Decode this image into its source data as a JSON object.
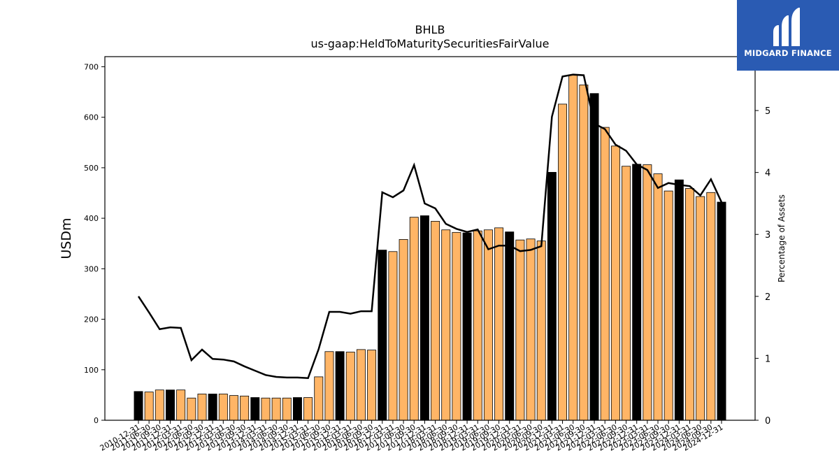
{
  "chart_data": {
    "type": "bar",
    "title": "BHLB",
    "subtitle": "us-gaap:HeldToMaturitySecuritiesFairValue",
    "ylabel": "USDm",
    "y2label": "Percentage of Assets",
    "ylim": [
      0,
      720
    ],
    "y2lim": [
      0,
      5.87
    ],
    "yticks": [
      0,
      100,
      200,
      300,
      400,
      500,
      600,
      700
    ],
    "y2ticks": [
      0,
      1,
      2,
      3,
      4,
      5
    ],
    "categories": [
      "2010-12-31",
      "2011-06-30",
      "2011-09-30",
      "2011-12-31",
      "2012-03-31",
      "2012-06-30",
      "2012-09-30",
      "2012-12-31",
      "2013-03-31",
      "2013-06-30",
      "2013-09-30",
      "2013-12-31",
      "2014-03-31",
      "2014-06-30",
      "2014-09-30",
      "2014-12-31",
      "2015-03-31",
      "2015-06-30",
      "2015-09-30",
      "2015-12-31",
      "2016-03-31",
      "2016-06-30",
      "2016-09-30",
      "2016-12-31",
      "2017-03-31",
      "2017-06-30",
      "2017-09-30",
      "2017-12-31",
      "2018-03-31",
      "2018-06-30",
      "2018-09-30",
      "2018-12-31",
      "2019-03-31",
      "2019-06-30",
      "2019-09-30",
      "2019-12-31",
      "2020-03-31",
      "2020-06-30",
      "2020-09-30",
      "2020-12-31",
      "2021-03-31",
      "2021-06-30",
      "2021-09-30",
      "2021-12-31",
      "2022-03-31",
      "2022-06-30",
      "2022-09-30",
      "2022-12-31",
      "2023-03-31",
      "2023-06-30",
      "2023-09-30",
      "2023-12-31",
      "2024-03-31",
      "2024-06-30",
      "2024-09-30",
      "2024-12-31"
    ],
    "series": [
      {
        "type": "bar",
        "values": [
          57,
          56,
          60,
          60,
          60,
          44,
          52,
          52,
          52,
          49,
          48,
          45,
          44,
          44,
          44,
          45,
          45,
          86,
          136,
          136,
          135,
          140,
          139,
          337,
          334,
          358,
          402,
          405,
          394,
          377,
          372,
          371,
          375,
          377,
          381,
          373,
          357,
          359,
          355,
          491,
          626,
          684,
          664,
          647,
          580,
          543,
          503,
          507,
          506,
          488,
          454,
          476,
          459,
          443,
          451,
          432
        ]
      },
      {
        "type": "line",
        "axis": "right",
        "values": [
          2.0,
          1.74,
          1.47,
          1.5,
          1.49,
          0.97,
          1.14,
          0.99,
          0.98,
          0.95,
          0.87,
          0.8,
          0.73,
          0.7,
          0.69,
          0.69,
          0.68,
          1.15,
          1.75,
          1.75,
          1.72,
          1.76,
          1.76,
          3.68,
          3.6,
          3.71,
          4.12,
          3.5,
          3.42,
          3.17,
          3.09,
          3.04,
          3.08,
          2.76,
          2.82,
          2.82,
          2.73,
          2.75,
          2.81,
          4.9,
          5.55,
          5.58,
          5.57,
          4.79,
          4.7,
          4.45,
          4.35,
          4.13,
          4.04,
          3.75,
          3.83,
          3.8,
          3.78,
          3.63,
          3.89,
          3.52
        ]
      }
    ],
    "bar_colors": [
      "black",
      "orange",
      "orange",
      "black",
      "orange",
      "orange",
      "orange",
      "black",
      "orange",
      "orange",
      "orange",
      "black",
      "orange",
      "orange",
      "orange",
      "black",
      "orange",
      "orange",
      "orange",
      "black",
      "orange",
      "orange",
      "orange",
      "black",
      "orange",
      "orange",
      "orange",
      "black",
      "orange",
      "orange",
      "orange",
      "black",
      "orange",
      "orange",
      "orange",
      "black",
      "orange",
      "orange",
      "orange",
      "black",
      "orange",
      "orange",
      "orange",
      "black",
      "orange",
      "orange",
      "orange",
      "black",
      "orange",
      "orange",
      "orange",
      "black",
      "orange",
      "orange",
      "orange",
      "black"
    ],
    "colors": {
      "bar_orange": "#ffb566",
      "bar_black": "#000000",
      "bar_edge": "#000000",
      "line": "#000000"
    },
    "grid": false
  },
  "logo": {
    "name": "MIDGARD FINANCE",
    "background": "#2a5bb3"
  }
}
